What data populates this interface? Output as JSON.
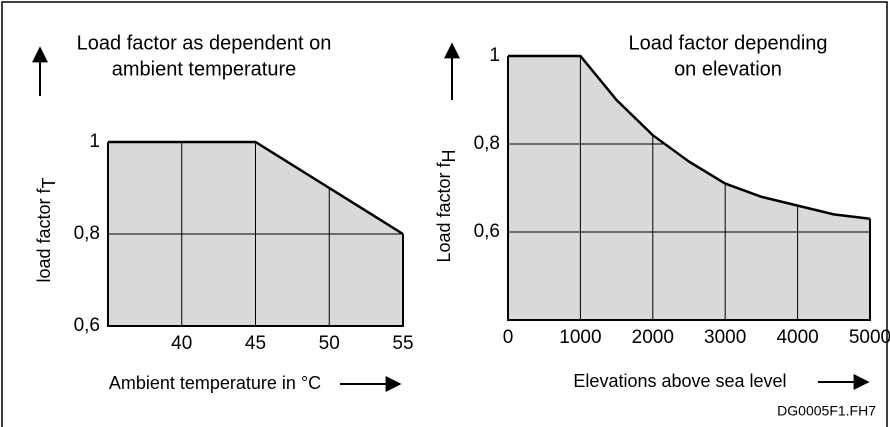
{
  "chart_data": [
    {
      "type": "area",
      "title": [
        "Load factor as dependent on",
        "ambient temperature"
      ],
      "x_label": "Ambient temperature in °C",
      "y_label": "load factor f",
      "y_label_subscript": "T",
      "x": [
        35,
        45,
        55
      ],
      "values": [
        1,
        1,
        0.8
      ],
      "color": "#d9d9d9",
      "xlim": [
        35,
        55
      ],
      "xticks": [
        40,
        45,
        50,
        55
      ],
      "ylim": [
        0.6,
        1
      ],
      "yticks": [
        {
          "value": 0.6,
          "label": "0,6"
        },
        {
          "value": 0.8,
          "label": "0,8"
        },
        1
      ],
      "grid": true
    },
    {
      "type": "area",
      "title": [
        "Load factor depending",
        "on elevation"
      ],
      "x_label": "Elevations above sea level",
      "y_label": "Load factor f",
      "y_label_subscript": "H",
      "x": [
        0,
        1000,
        1500,
        2000,
        2500,
        3000,
        3500,
        4000,
        4500,
        5000
      ],
      "values": [
        1,
        1,
        0.9,
        0.82,
        0.76,
        0.71,
        0.68,
        0.66,
        0.64,
        0.63
      ],
      "color": "#d9d9d9",
      "xlim": [
        0,
        5000
      ],
      "xticks": [
        0,
        1000,
        2000,
        3000,
        4000,
        5000
      ],
      "ylim": [
        0.4,
        1
      ],
      "yticks": [
        {
          "value": 0.6,
          "label": "0,6"
        },
        {
          "value": 0.8,
          "label": "0,8"
        },
        1
      ],
      "grid": true
    }
  ],
  "footnote": "DG0005F1.FH7"
}
